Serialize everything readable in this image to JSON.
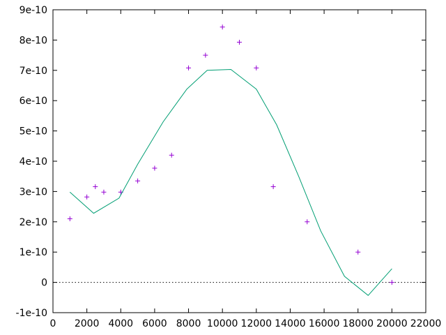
{
  "chart_data": {
    "type": "scatter",
    "title": "",
    "xlabel": "",
    "ylabel": "",
    "xlim": [
      0,
      22000
    ],
    "ylim": [
      -1e-10,
      9e-10
    ],
    "x_ticks": [
      0,
      2000,
      4000,
      6000,
      8000,
      10000,
      12000,
      14000,
      16000,
      18000,
      20000,
      22000
    ],
    "x_tick_labels": [
      "0",
      "2000",
      "4000",
      "6000",
      "8000",
      "10000",
      "12000",
      "14000",
      "16000",
      "18000",
      "20000",
      "22000"
    ],
    "y_ticks": [
      -1e-10,
      0,
      1e-10,
      2e-10,
      3e-10,
      4e-10,
      5e-10,
      6e-10,
      7e-10,
      8e-10,
      9e-10
    ],
    "y_tick_labels": [
      "-1e-10",
      "0",
      "1e-10",
      "2e-10",
      "3e-10",
      "4e-10",
      "5e-10",
      "6e-10",
      "7e-10",
      "8e-10",
      "9e-10"
    ],
    "grid": false,
    "legend": "none",
    "zero_line": true,
    "series": [
      {
        "kind": "points",
        "marker": "plus",
        "color": "#9400d3",
        "points": [
          [
            1000,
            2.1e-10
          ],
          [
            2000,
            2.82e-10
          ],
          [
            2500,
            3.16e-10
          ],
          [
            3000,
            2.98e-10
          ],
          [
            4000,
            2.98e-10
          ],
          [
            5000,
            3.35e-10
          ],
          [
            6000,
            3.77e-10
          ],
          [
            7000,
            4.2e-10
          ],
          [
            8000,
            7.08e-10
          ],
          [
            9000,
            7.5e-10
          ],
          [
            10000,
            8.43e-10
          ],
          [
            11000,
            7.93e-10
          ],
          [
            12000,
            7.08e-10
          ],
          [
            13000,
            3.16e-10
          ],
          [
            15000,
            2e-10
          ],
          [
            18000,
            1e-10
          ],
          [
            20000,
            0.0
          ]
        ]
      },
      {
        "kind": "line",
        "color": "#009e73",
        "points": [
          [
            1000,
            2.98e-10
          ],
          [
            2400,
            2.28e-10
          ],
          [
            3900,
            2.78e-10
          ],
          [
            5000,
            3.9e-10
          ],
          [
            6500,
            5.3e-10
          ],
          [
            7900,
            6.38e-10
          ],
          [
            9100,
            7e-10
          ],
          [
            10500,
            7.03e-10
          ],
          [
            12000,
            6.38e-10
          ],
          [
            13200,
            5.2e-10
          ],
          [
            14500,
            3.5e-10
          ],
          [
            15800,
            1.7e-10
          ],
          [
            17200,
            2e-11
          ],
          [
            18600,
            -4.3e-11
          ],
          [
            20000,
            4.5e-11
          ]
        ]
      }
    ]
  },
  "colors": {
    "axis": "#000000",
    "zero_line": "#000000"
  }
}
